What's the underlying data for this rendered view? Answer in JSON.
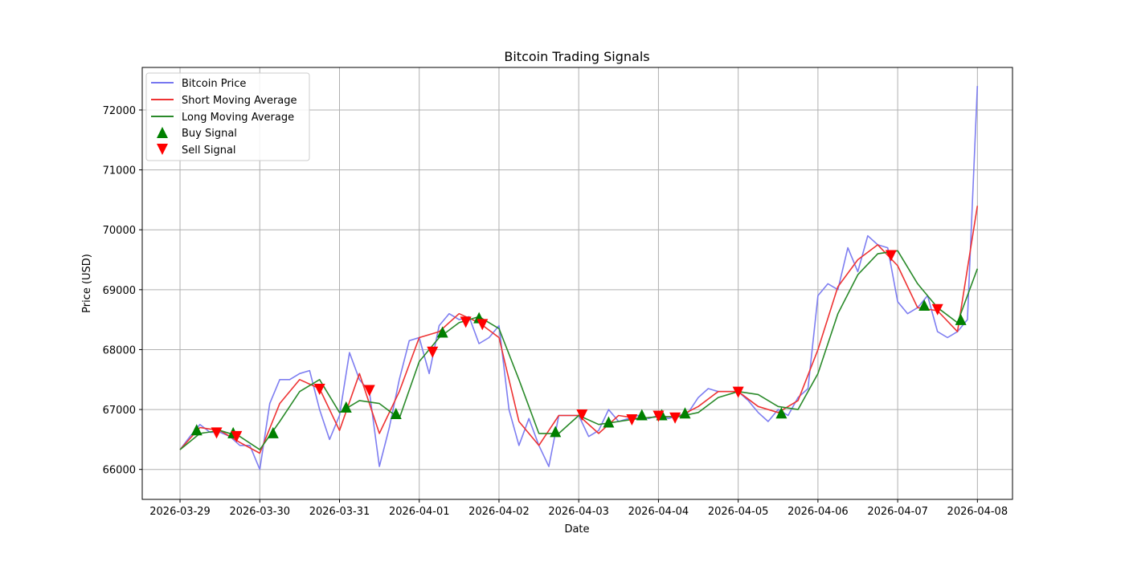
{
  "chart_data": {
    "type": "line",
    "title": "Bitcoin Trading Signals",
    "xlabel": "Date",
    "ylabel": "Price (USD)",
    "ylim": [
      65500,
      72710
    ],
    "xlim_days": [
      -0.474,
      10.44
    ],
    "grid": true,
    "legend_position": "top-left",
    "x_ticks": [
      "2026-03-29",
      "2026-03-30",
      "2026-03-31",
      "2026-04-01",
      "2026-04-02",
      "2026-04-03",
      "2026-04-04",
      "2026-04-05",
      "2026-04-06",
      "2026-04-07",
      "2026-04-08"
    ],
    "y_ticks": [
      66000,
      67000,
      68000,
      69000,
      70000,
      71000,
      72000
    ],
    "legend": [
      "Bitcoin Price",
      "Short Moving Average",
      "Long Moving Average",
      "Buy Signal",
      "Sell Signal"
    ],
    "colors": {
      "price": "#7777f0",
      "short": "#ee3333",
      "long": "#2a8a2a",
      "buy": "#008000",
      "sell": "#ff0000"
    },
    "price": {
      "start": "2026-03-29 00:00",
      "interval_hours": 3,
      "values": [
        66330,
        66550,
        66750,
        66620,
        66620,
        66550,
        66400,
        66400,
        66000,
        67100,
        67500,
        67500,
        67600,
        67650,
        67000,
        66500,
        66900,
        67950,
        67500,
        67300,
        66050,
        66700,
        67500,
        68150,
        68200,
        67600,
        68400,
        68600,
        68500,
        68550,
        68100,
        68200,
        68400,
        67000,
        66400,
        66850,
        66400,
        66050,
        66900,
        66900,
        66900,
        66550,
        66650,
        67000,
        66800,
        66850,
        66900,
        66850,
        66900,
        66850,
        66900,
        66950,
        67200,
        67350,
        67300,
        67300,
        67300,
        67150,
        66950,
        66800,
        67000,
        66900,
        67200,
        67350,
        68900,
        69100,
        69000,
        69700,
        69300,
        69900,
        69750,
        69700,
        68800,
        68600,
        68700,
        68900,
        68300,
        68200,
        68300,
        68500,
        72400
      ]
    },
    "short_ma": {
      "start": "2026-03-29 00:00",
      "interval_hours": 6,
      "values": [
        66330,
        66700,
        66650,
        66450,
        66270,
        67100,
        67500,
        67350,
        66650,
        67600,
        66600,
        67300,
        68200,
        68300,
        68600,
        68450,
        68200,
        66800,
        66400,
        66900,
        66900,
        66600,
        66900,
        66850,
        66880,
        66880,
        67050,
        67300,
        67300,
        67050,
        66950,
        67150,
        68000,
        69050,
        69500,
        69750,
        69400,
        68700,
        68650,
        68300,
        70400
      ]
    },
    "long_ma": {
      "start": "2026-03-29 00:00",
      "interval_hours": 6,
      "values": [
        66330,
        66600,
        66650,
        66550,
        66330,
        66800,
        67300,
        67500,
        66950,
        67150,
        67100,
        66850,
        67800,
        68200,
        68450,
        68550,
        68350,
        67500,
        66600,
        66600,
        66900,
        66750,
        66800,
        66850,
        66880,
        66880,
        66950,
        67200,
        67300,
        67250,
        67050,
        67000,
        67600,
        68600,
        69250,
        69600,
        69650,
        69100,
        68700,
        68450,
        69350
      ]
    },
    "buy_signals": [
      {
        "date": "2026-03-29 05:00",
        "price": 66650
      },
      {
        "date": "2026-03-29 16:00",
        "price": 66600
      },
      {
        "date": "2026-03-30 04:00",
        "price": 66600
      },
      {
        "date": "2026-03-31 02:00",
        "price": 67030
      },
      {
        "date": "2026-03-31 17:00",
        "price": 66920
      },
      {
        "date": "2026-04-01 07:00",
        "price": 68280
      },
      {
        "date": "2026-04-01 18:00",
        "price": 68520
      },
      {
        "date": "2026-04-02 17:00",
        "price": 66620
      },
      {
        "date": "2026-04-03 09:00",
        "price": 66780
      },
      {
        "date": "2026-04-03 19:00",
        "price": 66900
      },
      {
        "date": "2026-04-04 01:00",
        "price": 66900
      },
      {
        "date": "2026-04-04 08:00",
        "price": 66930
      },
      {
        "date": "2026-04-05 13:00",
        "price": 66930
      },
      {
        "date": "2026-04-07 08:00",
        "price": 68730
      },
      {
        "date": "2026-04-07 19:00",
        "price": 68490
      }
    ],
    "sell_signals": [
      {
        "date": "2026-03-29 11:00",
        "price": 66620
      },
      {
        "date": "2026-03-29 17:00",
        "price": 66560
      },
      {
        "date": "2026-03-30 18:00",
        "price": 67350
      },
      {
        "date": "2026-03-31 09:00",
        "price": 67330
      },
      {
        "date": "2026-04-01 04:00",
        "price": 67970
      },
      {
        "date": "2026-04-01 14:00",
        "price": 68470
      },
      {
        "date": "2026-04-01 19:00",
        "price": 68430
      },
      {
        "date": "2026-04-03 01:00",
        "price": 66920
      },
      {
        "date": "2026-04-03 16:00",
        "price": 66840
      },
      {
        "date": "2026-04-04 00:00",
        "price": 66900
      },
      {
        "date": "2026-04-04 05:00",
        "price": 66870
      },
      {
        "date": "2026-04-05 00:00",
        "price": 67300
      },
      {
        "date": "2026-04-06 22:00",
        "price": 69580
      },
      {
        "date": "2026-04-07 12:00",
        "price": 68680
      }
    ]
  }
}
